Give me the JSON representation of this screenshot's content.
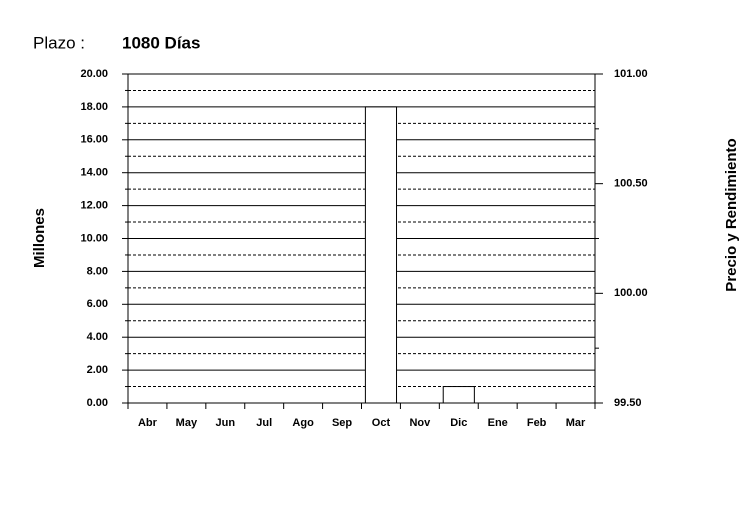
{
  "chart_data": {
    "type": "bar",
    "title": "Plazo :",
    "subtitle": "1080 Días",
    "ylabel": "Millones",
    "y2label": "Precio y Rendimiento",
    "categories": [
      "Abr",
      "May",
      "Jun",
      "Jul",
      "Ago",
      "Sep",
      "Oct",
      "Nov",
      "Dic",
      "Ene",
      "Feb",
      "Mar"
    ],
    "values": [
      0,
      0,
      0,
      0,
      0,
      0,
      18,
      0,
      1,
      0,
      0,
      0
    ],
    "color": "#ffffff",
    "ylim": [
      0,
      20
    ],
    "yticks": [
      {
        "value": 0,
        "label": "0.00"
      },
      {
        "value": 2,
        "label": "2.00"
      },
      {
        "value": 4,
        "label": "4.00"
      },
      {
        "value": 6,
        "label": "6.00"
      },
      {
        "value": 8,
        "label": "8.00"
      },
      {
        "value": 10,
        "label": "10.00"
      },
      {
        "value": 12,
        "label": "12.00"
      },
      {
        "value": 14,
        "label": "14.00"
      },
      {
        "value": 16,
        "label": "16.00"
      },
      {
        "value": 18,
        "label": "18.00"
      },
      {
        "value": 20,
        "label": "20.00"
      }
    ],
    "yminorticks": [
      1,
      3,
      5,
      7,
      9,
      11,
      13,
      15,
      17,
      19
    ],
    "y2lim": [
      99.5,
      101
    ],
    "y2ticks": [
      {
        "value": 99.5,
        "label": "99.50"
      },
      {
        "value": 100,
        "label": "100.00"
      },
      {
        "value": 100.5,
        "label": "100.50"
      },
      {
        "value": 101,
        "label": "101.00"
      }
    ],
    "y2minorticks": [
      99.75,
      100.25,
      100.75
    ],
    "grid": true
  }
}
